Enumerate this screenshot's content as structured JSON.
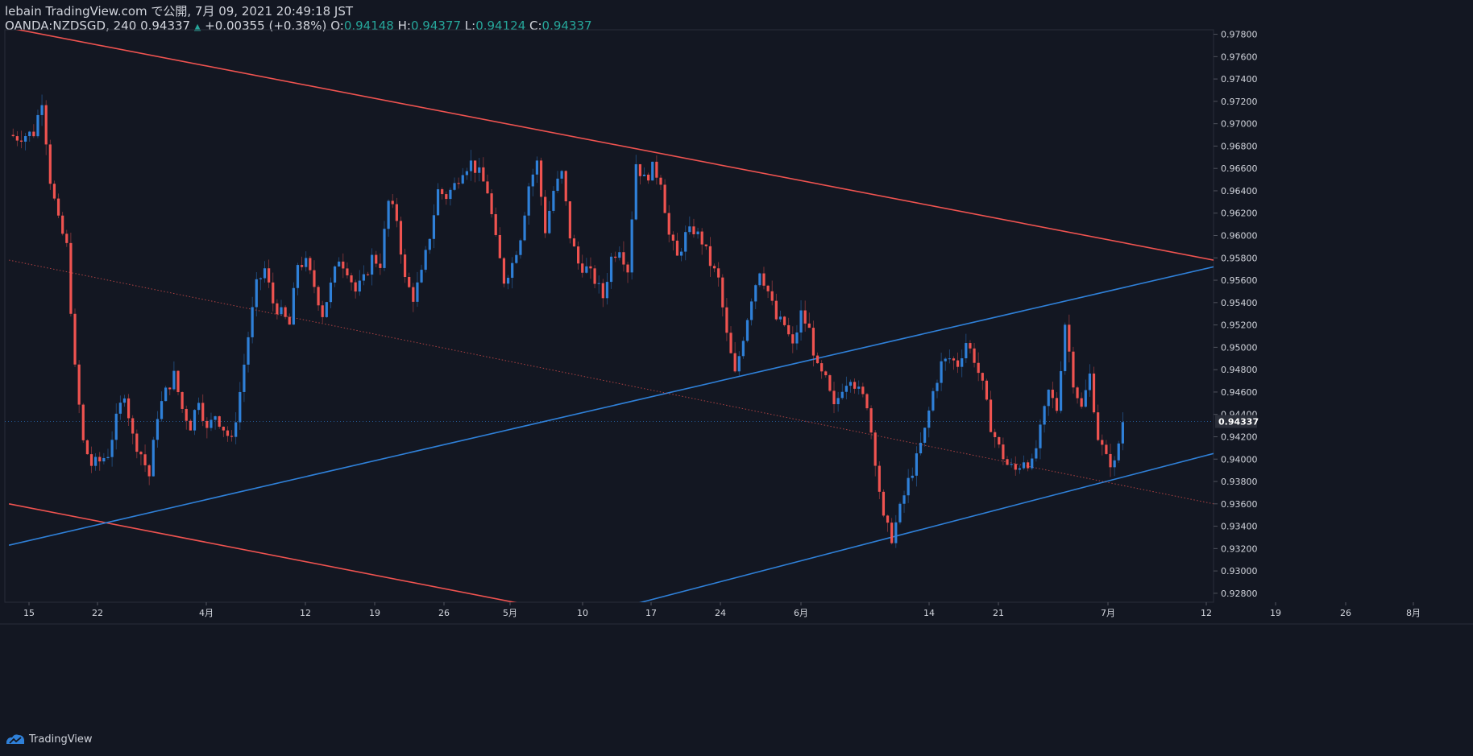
{
  "header": {
    "line1": "lebain TradingView.com で公開, 7月 09, 2021 20:49:18 JST",
    "symbol": "OANDA:NZDSGD, 240",
    "last": "0.94337",
    "arrow": "▲",
    "change": "+0.00355 (+0.38%)",
    "o_label": "O:",
    "o_value": "0.94148",
    "h_label": "H:",
    "h_value": "0.94377",
    "l_label": "L:",
    "l_value": "0.94124",
    "c_label": "C:",
    "c_value": "0.94337"
  },
  "footer": {
    "brand": "TradingView"
  },
  "colors": {
    "background": "#131722",
    "up": "#2f80d8",
    "down": "#ef5350",
    "resistance": "#ef5350",
    "support": "#2f80d8",
    "grid_text": "#d1d4dc",
    "ohlc_value": "#26a69a"
  },
  "chart_data": {
    "type": "candlestick",
    "symbol": "OANDA:NZDSGD",
    "interval": "240",
    "ylim": [
      0.9272,
      0.9784
    ],
    "y_ticks": [
      "0.97800",
      "0.97600",
      "0.97400",
      "0.97200",
      "0.97000",
      "0.96800",
      "0.96600",
      "0.96400",
      "0.96200",
      "0.96000",
      "0.95800",
      "0.95600",
      "0.95400",
      "0.95200",
      "0.95000",
      "0.94800",
      "0.94600",
      "0.94400",
      "0.94200",
      "0.94000",
      "0.93800",
      "0.93600",
      "0.93400",
      "0.93200",
      "0.93000",
      "0.92800"
    ],
    "x_ticks": [
      "15",
      "22",
      "4月",
      "12",
      "19",
      "26",
      "5月",
      "10",
      "17",
      "24",
      "6月",
      "14",
      "21",
      "7月",
      "12",
      "19",
      "26",
      "8月"
    ],
    "last_price_label": "0.94337",
    "close_path": [
      [
        0,
        0.969
      ],
      [
        1,
        0.9688
      ],
      [
        3,
        0.9692
      ],
      [
        4,
        0.9722
      ],
      [
        5,
        0.965
      ],
      [
        6,
        0.9612
      ],
      [
        7,
        0.959
      ],
      [
        8,
        0.948
      ],
      [
        9,
        0.9415
      ],
      [
        10,
        0.9395
      ],
      [
        11,
        0.9398
      ],
      [
        12,
        0.9405
      ],
      [
        13,
        0.9435
      ],
      [
        14,
        0.946
      ],
      [
        15,
        0.942
      ],
      [
        16,
        0.9405
      ],
      [
        17,
        0.9385
      ],
      [
        18,
        0.944
      ],
      [
        19,
        0.946
      ],
      [
        20,
        0.9475
      ],
      [
        21,
        0.9445
      ],
      [
        22,
        0.943
      ],
      [
        23,
        0.9455
      ],
      [
        24,
        0.9425
      ],
      [
        25,
        0.944
      ],
      [
        26,
        0.9428
      ],
      [
        27,
        0.9415
      ],
      [
        28,
        0.946
      ],
      [
        29,
        0.951
      ],
      [
        30,
        0.9555
      ],
      [
        31,
        0.957
      ],
      [
        32,
        0.954
      ],
      [
        33,
        0.953
      ],
      [
        34,
        0.952
      ],
      [
        35,
        0.9575
      ],
      [
        36,
        0.9575
      ],
      [
        37,
        0.9555
      ],
      [
        38,
        0.953
      ],
      [
        39,
        0.9555
      ],
      [
        40,
        0.958
      ],
      [
        41,
        0.957
      ],
      [
        42,
        0.955
      ],
      [
        43,
        0.956
      ],
      [
        44,
        0.958
      ],
      [
        45,
        0.9575
      ],
      [
        46,
        0.963
      ],
      [
        47,
        0.9615
      ],
      [
        48,
        0.956
      ],
      [
        49,
        0.9545
      ],
      [
        50,
        0.9565
      ],
      [
        51,
        0.96
      ],
      [
        52,
        0.964
      ],
      [
        53,
        0.9635
      ],
      [
        54,
        0.9645
      ],
      [
        55,
        0.966
      ],
      [
        56,
        0.9665
      ],
      [
        57,
        0.9655
      ],
      [
        58,
        0.964
      ],
      [
        59,
        0.9595
      ],
      [
        60,
        0.956
      ],
      [
        61,
        0.9575
      ],
      [
        62,
        0.96
      ],
      [
        63,
        0.9645
      ],
      [
        64,
        0.9665
      ],
      [
        65,
        0.9605
      ],
      [
        66,
        0.964
      ],
      [
        67,
        0.9655
      ],
      [
        68,
        0.96
      ],
      [
        69,
        0.9575
      ],
      [
        70,
        0.957
      ],
      [
        71,
        0.956
      ],
      [
        72,
        0.9545
      ],
      [
        73,
        0.958
      ],
      [
        74,
        0.959
      ],
      [
        75,
        0.957
      ],
      [
        76,
        0.9665
      ],
      [
        77,
        0.965
      ],
      [
        78,
        0.966
      ],
      [
        79,
        0.965
      ],
      [
        80,
        0.96
      ],
      [
        81,
        0.958
      ],
      [
        82,
        0.96
      ],
      [
        83,
        0.9605
      ],
      [
        84,
        0.9595
      ],
      [
        85,
        0.9575
      ],
      [
        86,
        0.956
      ],
      [
        87,
        0.951
      ],
      [
        88,
        0.9475
      ],
      [
        89,
        0.951
      ],
      [
        90,
        0.9545
      ],
      [
        91,
        0.957
      ],
      [
        92,
        0.955
      ],
      [
        93,
        0.9525
      ],
      [
        94,
        0.952
      ],
      [
        95,
        0.95
      ],
      [
        96,
        0.953
      ],
      [
        97,
        0.9515
      ],
      [
        98,
        0.948
      ],
      [
        99,
        0.947
      ],
      [
        100,
        0.9445
      ],
      [
        101,
        0.9465
      ],
      [
        102,
        0.9475
      ],
      [
        103,
        0.946
      ],
      [
        104,
        0.945
      ],
      [
        105,
        0.94
      ],
      [
        106,
        0.9345
      ],
      [
        107,
        0.933
      ],
      [
        108,
        0.9355
      ],
      [
        109,
        0.938
      ],
      [
        110,
        0.94
      ],
      [
        111,
        0.9425
      ],
      [
        112,
        0.946
      ],
      [
        113,
        0.9485
      ],
      [
        114,
        0.949
      ],
      [
        115,
        0.9485
      ],
      [
        116,
        0.9505
      ],
      [
        117,
        0.949
      ],
      [
        118,
        0.9465
      ],
      [
        119,
        0.943
      ],
      [
        120,
        0.941
      ],
      [
        121,
        0.9395
      ],
      [
        122,
        0.939
      ],
      [
        123,
        0.94
      ],
      [
        124,
        0.9395
      ],
      [
        125,
        0.9425
      ],
      [
        126,
        0.946
      ],
      [
        127,
        0.9445
      ],
      [
        128,
        0.9522
      ],
      [
        129,
        0.947
      ],
      [
        130,
        0.9445
      ],
      [
        131,
        0.9475
      ],
      [
        132,
        0.942
      ],
      [
        133,
        0.94
      ],
      [
        134,
        0.9395
      ],
      [
        135,
        0.9434
      ]
    ],
    "ref_lines": [
      {
        "name": "",
        "style": "solid",
        "color": "#ef5350",
        "x1": -3,
        "y1": 0.979,
        "x2": 146,
        "y2": 0.9578
      },
      {
        "name": "",
        "style": "solid",
        "color": "#ef5350",
        "x1": 0,
        "y1": 0.936,
        "x2": 146,
        "y2": 0.915
      },
      {
        "name": "",
        "style": "solid",
        "color": "#2f80d8",
        "x1": 0,
        "y1": 0.9323,
        "x2": 146,
        "y2": 0.9572
      },
      {
        "name": "",
        "style": "solid",
        "color": "#2f80d8",
        "x1": 60,
        "y1": 0.924,
        "x2": 146,
        "y2": 0.9405
      },
      {
        "name": "",
        "style": "dotted",
        "color": "#ef5350",
        "x1": 0,
        "y1": 0.9578,
        "x2": 146,
        "y2": 0.936
      }
    ],
    "x_range": [
      -0.5,
      146
    ]
  }
}
